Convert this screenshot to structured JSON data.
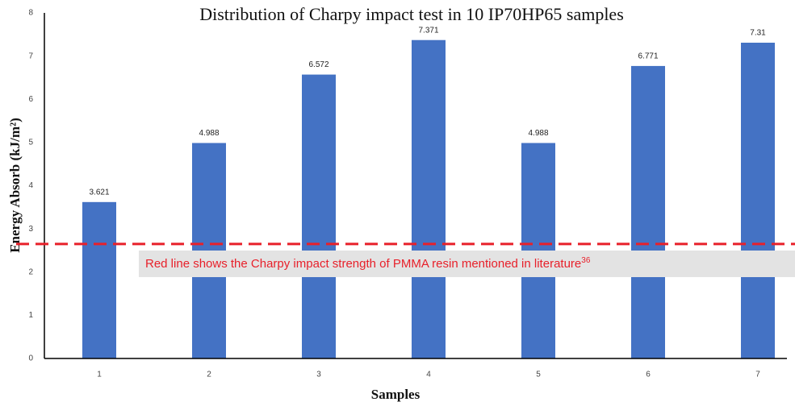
{
  "chart_data": {
    "type": "bar",
    "title": "Distribution of Charpy impact test in 10 IP70HP65 samples",
    "xlabel": "Samples",
    "ylabel": "Energy Absorb (kJ/m²)",
    "categories": [
      "1",
      "2",
      "3",
      "4",
      "5",
      "6",
      "7"
    ],
    "values": [
      3.621,
      4.988,
      6.572,
      7.371,
      4.988,
      6.771,
      7.31
    ],
    "color": "#4472c4",
    "ylim": [
      0,
      8
    ],
    "yticks": [
      0,
      1,
      2,
      3,
      4,
      5,
      6,
      7,
      8
    ],
    "grid": false,
    "reference_line": {
      "value": 2.65,
      "color": "#e8202a"
    },
    "annotation": "Red line shows the Charpy impact strength of PMMA resin mentioned in literature",
    "annotation_ref": "36"
  }
}
